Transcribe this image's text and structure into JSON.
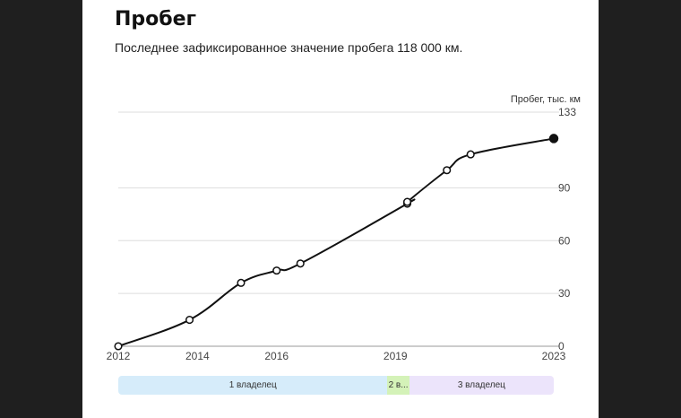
{
  "header": {
    "title": "Пробег",
    "subtitle": "Последнее зафиксированное значение пробега 118 000 км."
  },
  "chart_data": {
    "type": "line",
    "ylabel": "Пробег, тыс. км",
    "yticks": [
      0,
      30,
      60,
      90,
      133
    ],
    "ylim": [
      0,
      133
    ],
    "xlim": [
      2012,
      2023
    ],
    "xticks": [
      "2012",
      "2014",
      "2016",
      "2019",
      "2023"
    ],
    "xtick_values": [
      2012,
      2014,
      2016,
      2019,
      2023
    ],
    "grid": true,
    "series": [
      {
        "points": [
          {
            "x": 2012.0,
            "y": 0
          },
          {
            "x": 2013.8,
            "y": 15
          },
          {
            "x": 2015.1,
            "y": 36
          },
          {
            "x": 2016.0,
            "y": 43
          },
          {
            "x": 2016.6,
            "y": 47
          },
          {
            "x": 2019.3,
            "y": 81
          },
          {
            "x": 2019.3,
            "y": 82
          },
          {
            "x": 2020.3,
            "y": 100
          },
          {
            "x": 2020.9,
            "y": 109
          },
          {
            "x": 2023.0,
            "y": 118
          }
        ],
        "last_point_filled": true
      }
    ]
  },
  "owners": [
    {
      "label": "1 владелец",
      "from": 2012.0,
      "to": 2018.8,
      "color": "#d6ecfa"
    },
    {
      "label": "2 в...",
      "from": 2018.8,
      "to": 2019.35,
      "color": "#d4f2b8"
    },
    {
      "label": "3 владелец",
      "from": 2019.35,
      "to": 2023.0,
      "color": "#ece4fb"
    }
  ]
}
